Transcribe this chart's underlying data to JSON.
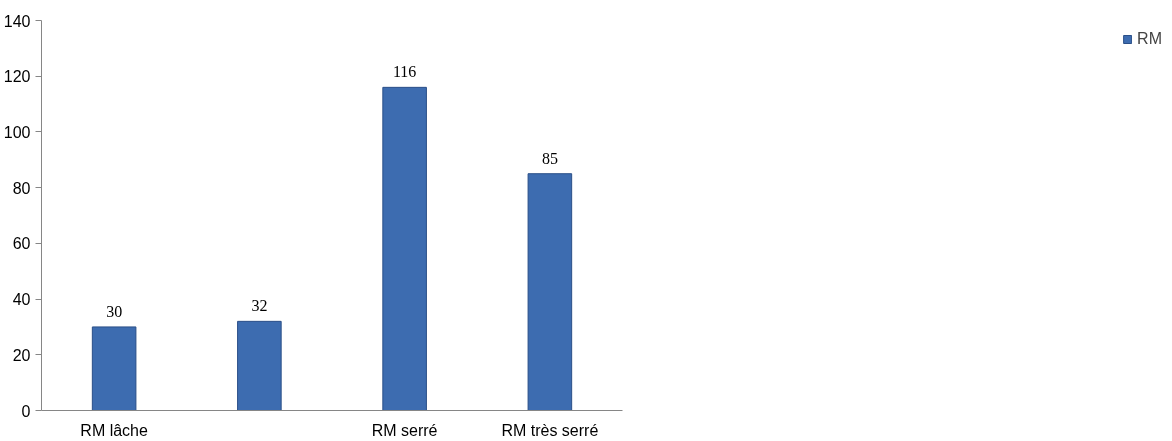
{
  "chart_data": {
    "type": "bar",
    "categories": [
      "RM lâche",
      null,
      "RM serré",
      "RM très serré"
    ],
    "series": [
      {
        "name": "RM",
        "color": "#3d6cb0",
        "values": [
          30,
          32,
          116,
          85
        ]
      }
    ],
    "ylim": [
      0,
      140
    ],
    "yticks": [
      0,
      20,
      40,
      60,
      80,
      100,
      120,
      140
    ],
    "data_labels": true,
    "legend": "right",
    "grid": false
  }
}
